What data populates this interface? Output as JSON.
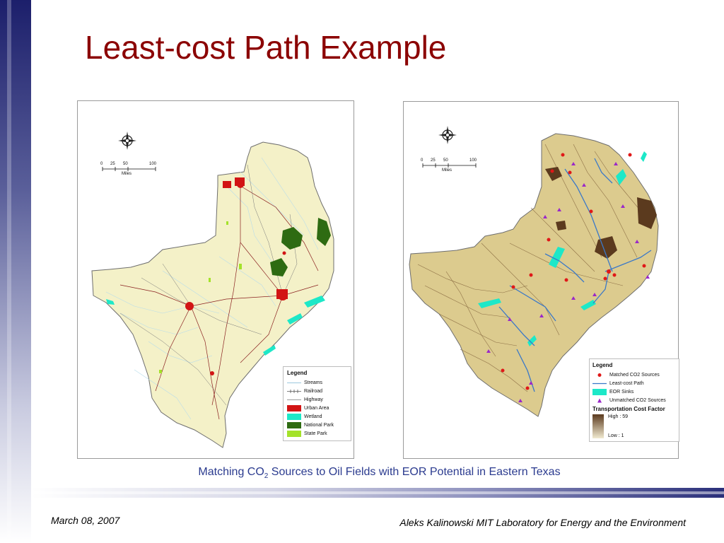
{
  "slide": {
    "title": "Least-cost Path Example",
    "caption_prefix": "Matching CO",
    "caption_sub": "2",
    "caption_suffix": " Sources to Oil Fields with EOR Potential in Eastern Texas",
    "footer_date": "March 08, 2007",
    "footer_credit": "Aleks Kalinowski   MIT Laboratory for Energy and the Environment"
  },
  "colors": {
    "title": "#8b0000",
    "caption": "#2b3b8f",
    "land_left": "#f4f1c8",
    "land_right": "#dccb8e",
    "urban": "#d21414",
    "wetland": "#1de8c8",
    "national_park": "#2e6b12",
    "state_park": "#a4e22a",
    "least_cost_path": "#3a78c8",
    "matched_source": "#e01818",
    "unmatched_source": "#9a28c8",
    "cost_high": "#5b3a1e",
    "cost_low": "#f1ead0"
  },
  "scale_bar": {
    "ticks": [
      "0",
      "25",
      "50",
      "100"
    ],
    "unit": "Miles"
  },
  "map_left": {
    "legend_title": "Legend",
    "legend_items": [
      {
        "label": "Streams",
        "symbol": "stream-line"
      },
      {
        "label": "Railroad",
        "symbol": "railroad-line"
      },
      {
        "label": "Highway",
        "symbol": "highway-line"
      },
      {
        "label": "Urban Area",
        "symbol": "urban-fill"
      },
      {
        "label": "Wetland",
        "symbol": "wetland-fill"
      },
      {
        "label": "National Park",
        "symbol": "national-park-fill"
      },
      {
        "label": "State Park",
        "symbol": "state-park-fill"
      }
    ]
  },
  "map_right": {
    "legend_title": "Legend",
    "legend_items": [
      {
        "label": "Matched CO2 Sources",
        "symbol": "red-dot"
      },
      {
        "label": "Least-cost Path",
        "symbol": "blue-line"
      },
      {
        "label": "EOR Sinks",
        "symbol": "cyan-fill"
      },
      {
        "label": "Unmatched CO2 Sources",
        "symbol": "purple-triangle"
      }
    ],
    "cost_title": "Transportation Cost Factor",
    "cost_high": "High : 59",
    "cost_low": "Low : 1"
  }
}
